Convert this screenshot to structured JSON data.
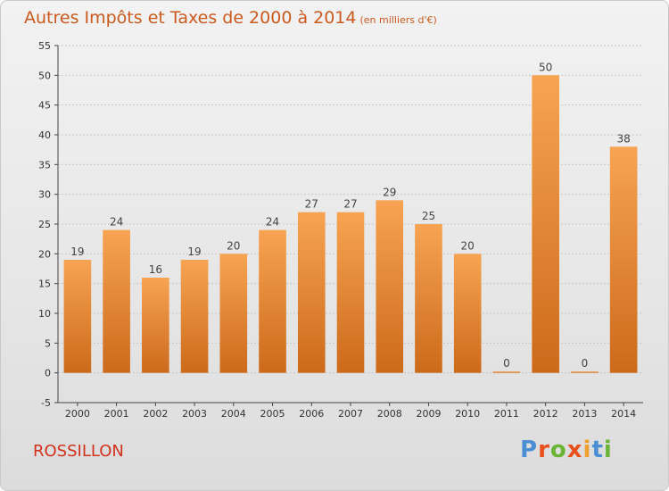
{
  "header": {
    "title": "Autres Impôts et Taxes de 2000 à 2014",
    "unit": "(en milliers d'€)"
  },
  "footer": {
    "location": "ROSSILLON",
    "logo_text": "Proxiti"
  },
  "colors": {
    "bar_top": "#f7a452",
    "bar_bottom": "#cc6a1a",
    "grid": "#c8c8c8",
    "axis": "#444444",
    "title": "#cc5a1f",
    "location": "#d2321c",
    "logo": [
      "#4a8fd4",
      "#e8501c",
      "#6bb536",
      "#e8501c",
      "#f0a030",
      "#4a8fd4",
      "#6bb536"
    ]
  },
  "chart_data": {
    "type": "bar",
    "title": "Autres Impôts et Taxes de 2000 à 2014",
    "subtitle": "(en milliers d'€)",
    "categories": [
      "2000",
      "2001",
      "2002",
      "2003",
      "2004",
      "2005",
      "2006",
      "2007",
      "2008",
      "2009",
      "2010",
      "2011",
      "2012",
      "2013",
      "2014"
    ],
    "values": [
      19,
      24,
      16,
      19,
      20,
      24,
      27,
      27,
      29,
      25,
      20,
      0,
      50,
      0,
      38
    ],
    "value_labels": [
      "19",
      "24",
      "16",
      "19",
      "20",
      "24",
      "27",
      "27",
      "29",
      "25",
      "20",
      "0",
      "50",
      "0",
      "38"
    ],
    "ylim": [
      -5,
      55
    ],
    "yticks": [
      -5,
      0,
      5,
      10,
      15,
      20,
      25,
      30,
      35,
      40,
      45,
      50,
      55
    ],
    "ytick_labels": [
      "-5",
      "0",
      "5",
      "10",
      "15",
      "20",
      "25",
      "30",
      "35",
      "40",
      "45",
      "50",
      "55"
    ],
    "grid": true,
    "legend": "none"
  }
}
